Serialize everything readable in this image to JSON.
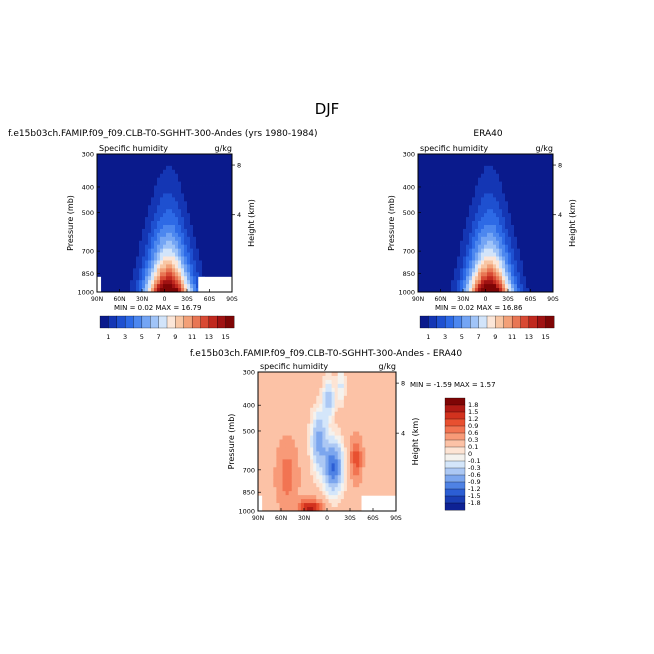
{
  "page_title": "DJF",
  "colors": {
    "frame": "#000000",
    "text": "#000000",
    "blank": "#ffffff"
  },
  "chart_data": [
    {
      "id": "model",
      "type": "heatmap",
      "title": "f.e15b03ch.FAMIP.f09_f09.CLB-T0-SGHHT-300-Andes (yrs 1980-1984)",
      "subtitle_left": "Specific humidity",
      "subtitle_right": "g/kg",
      "ylabel": "Pressure (mb)",
      "y2label": "Height (km)",
      "x_ticks": [
        "90N",
        "60N",
        "30N",
        "0",
        "30S",
        "60S",
        "90S"
      ],
      "y_ticks": [
        "300",
        "400",
        "500",
        "700",
        "850",
        "1000"
      ],
      "y2_ticks": [
        "8",
        "4"
      ],
      "xlim": [
        90,
        -90
      ],
      "ylim": [
        1000,
        300
      ],
      "y_scale": "log",
      "stats": "MIN =   0.02   MAX =  16.79",
      "peak_lat": -5,
      "peak_value": 16.79,
      "min_value": 0.02,
      "colorbar": {
        "ticks": [
          "1",
          "3",
          "5",
          "7",
          "9",
          "11",
          "13",
          "15"
        ],
        "levels": [
          1,
          2,
          3,
          4,
          5,
          6,
          7,
          8,
          9,
          10,
          11,
          12,
          13,
          14,
          15
        ],
        "colors": [
          "#0a1a8c",
          "#1436b4",
          "#1e50d0",
          "#2d6ae6",
          "#4c87ef",
          "#74a5f4",
          "#a0c4f8",
          "#d2e4fa",
          "#fce6d8",
          "#f8c6a4",
          "#f2a078",
          "#e87654",
          "#d84a34",
          "#c0281e",
          "#a01212",
          "#7e0505"
        ]
      }
    },
    {
      "id": "obs",
      "type": "heatmap",
      "title": "ERA40",
      "subtitle_left": "specific humidity",
      "subtitle_right": "g/kg",
      "ylabel": "Pressure (mb)",
      "y2label": "Height (km)",
      "x_ticks": [
        "90N",
        "60N",
        "30N",
        "0",
        "30S",
        "60S",
        "90S"
      ],
      "y_ticks": [
        "300",
        "400",
        "500",
        "700",
        "850",
        "1000"
      ],
      "y2_ticks": [
        "8",
        "4"
      ],
      "xlim": [
        90,
        -90
      ],
      "ylim": [
        1000,
        300
      ],
      "y_scale": "log",
      "stats": "MIN =   0.02   MAX =  16.86",
      "peak_lat": -5,
      "peak_value": 16.86,
      "min_value": 0.02,
      "colorbar": {
        "ticks": [
          "1",
          "3",
          "5",
          "7",
          "9",
          "11",
          "13",
          "15"
        ],
        "levels": [
          1,
          2,
          3,
          4,
          5,
          6,
          7,
          8,
          9,
          10,
          11,
          12,
          13,
          14,
          15
        ],
        "colors": [
          "#0a1a8c",
          "#1436b4",
          "#1e50d0",
          "#2d6ae6",
          "#4c87ef",
          "#74a5f4",
          "#a0c4f8",
          "#d2e4fa",
          "#fce6d8",
          "#f8c6a4",
          "#f2a078",
          "#e87654",
          "#d84a34",
          "#c0281e",
          "#a01212",
          "#7e0505"
        ]
      }
    },
    {
      "id": "diff",
      "type": "heatmap",
      "title": "f.e15b03ch.FAMIP.f09_f09.CLB-T0-SGHHT-300-Andes - ERA40",
      "subtitle_left": "specific humidity",
      "subtitle_right": "g/kg",
      "ylabel": "Pressure (mb)",
      "y2label": "Height (km)",
      "x_ticks": [
        "90N",
        "60N",
        "30N",
        "0",
        "30S",
        "60S",
        "90S"
      ],
      "y_ticks": [
        "300",
        "400",
        "500",
        "700",
        "850",
        "1000"
      ],
      "y2_ticks": [
        "8",
        "4"
      ],
      "xlim": [
        90,
        -90
      ],
      "ylim": [
        1000,
        300
      ],
      "y_scale": "log",
      "stats": "MIN =  -1.59   MAX =   1.57",
      "min_value": -1.59,
      "max_value": 1.57,
      "colorbar": {
        "labels": [
          "1.8",
          "1.5",
          "1.2",
          "0.9",
          "0.6",
          "0.3",
          "0.1",
          "0",
          "-0.1",
          "-0.3",
          "-0.6",
          "-0.9",
          "-1.2",
          "-1.5",
          "-1.8"
        ],
        "levels": [
          1.8,
          1.5,
          1.2,
          0.9,
          0.6,
          0.3,
          0.1,
          0,
          -0.1,
          -0.3,
          -0.6,
          -0.9,
          -1.2,
          -1.5,
          -1.8
        ],
        "colors": [
          "#7e0505",
          "#b01a14",
          "#d2321e",
          "#e85030",
          "#f27452",
          "#f89a78",
          "#fcc2a6",
          "#fde4d4",
          "#f4f2ee",
          "#d4e6fa",
          "#acc8f4",
          "#7ca6ee",
          "#4f82e4",
          "#2c5ed4",
          "#1a3eb4",
          "#0e2294"
        ]
      }
    }
  ]
}
